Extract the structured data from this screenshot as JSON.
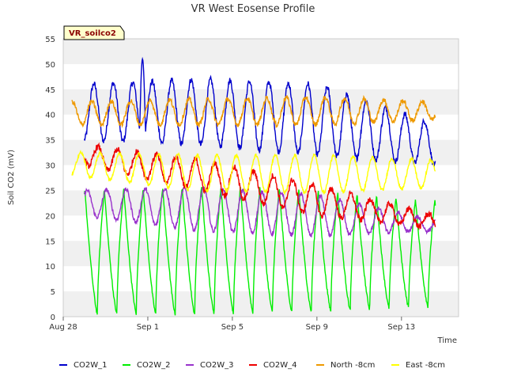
{
  "chart_data": {
    "type": "line",
    "title": "VR West Eosense Profile",
    "site_tag": "VR_soilco2",
    "xlabel": "Time",
    "ylabel": "Soil CO2 (mV)",
    "ylim": [
      0,
      55
    ],
    "yticks": [
      0,
      5,
      10,
      15,
      20,
      25,
      30,
      35,
      40,
      45,
      50,
      55
    ],
    "xlim": [
      0,
      18.7
    ],
    "xticks": [
      {
        "value": 0,
        "label": "Aug 28"
      },
      {
        "value": 4,
        "label": "Sep 1"
      },
      {
        "value": 8,
        "label": "Sep 5"
      },
      {
        "value": 12,
        "label": "Sep 9"
      },
      {
        "value": 16,
        "label": "Sep 13"
      }
    ],
    "grid": "horizontal alternating bands",
    "legend_position": "bottom",
    "series": [
      {
        "name": "CO2W_1",
        "color": "#0000cc",
        "params": {
          "start": 1.0,
          "end": 17.6,
          "period": 0.92,
          "phase": 0.3,
          "lo": [
            35,
            34,
            32,
            30
          ],
          "hi": [
            46,
            47,
            46,
            38
          ],
          "spike": [
            3.6,
            3.9,
            51
          ],
          "noise": 0.6
        }
      },
      {
        "name": "CO2W_2",
        "color": "#00ee00",
        "params": {
          "start": 1.0,
          "end": 17.6,
          "period": 0.92,
          "phase": 0.7,
          "lo": [
            0.5,
            0.5,
            1,
            2
          ],
          "hi": [
            25,
            26,
            25,
            23
          ],
          "sharp": true,
          "noise": 0.3
        }
      },
      {
        "name": "CO2W_3",
        "color": "#9933cc",
        "params": {
          "start": 1.0,
          "end": 17.6,
          "period": 0.92,
          "phase": 0.9,
          "lo": [
            20,
            17,
            16,
            17
          ],
          "hi": [
            25,
            25.5,
            24,
            19
          ],
          "noise": 0.4
        }
      },
      {
        "name": "CO2W_4",
        "color": "#ee0000",
        "params": {
          "start": 1.0,
          "end": 17.6,
          "period": 0.92,
          "phase": 0.5,
          "lo": [
            30,
            25,
            20,
            17.5
          ],
          "hi": [
            34,
            31,
            26,
            20
          ],
          "noise": 0.6
        }
      },
      {
        "name": "North -8cm",
        "color": "#ee9900",
        "params": {
          "start": 0.4,
          "end": 17.6,
          "period": 0.92,
          "phase": 0.2,
          "lo": [
            38,
            38,
            38,
            39
          ],
          "hi": [
            42.5,
            43,
            43.5,
            42.5
          ],
          "noise": 0.5
        }
      },
      {
        "name": "East -8cm",
        "color": "#ffff00",
        "params": {
          "start": 0.4,
          "end": 17.6,
          "period": 0.92,
          "phase": 0.6,
          "lo": [
            28,
            25,
            24.5,
            25.5
          ],
          "hi": [
            32.5,
            32,
            32,
            31
          ],
          "noise": 0.3
        }
      }
    ]
  }
}
